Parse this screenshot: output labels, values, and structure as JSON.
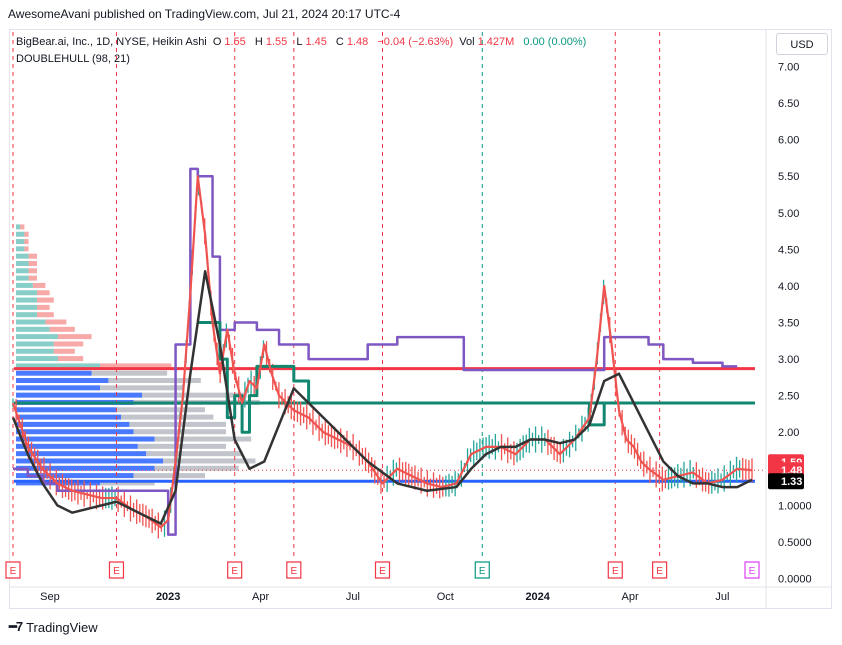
{
  "publisher_text": "AwesomeAvani published on TradingView.com, Jul 21, 2024 20:17 UTC-4",
  "legend": {
    "symbol": "BigBear.ai, Inc., 1D, NYSE, Heikin Ashi",
    "o_label": "O",
    "o_val": "1.55",
    "h_label": "H",
    "h_val": "1.55",
    "l_label": "L",
    "l_val": "1.45",
    "c_label": "C",
    "c_val": "1.48",
    "change": "−0.04 (−2.63%)",
    "vol_label": "Vol",
    "vol_val": "1.427M",
    "vol2": "0.00 (0.00%)",
    "indicator": "DOUBLEHULL (98, 21)"
  },
  "currency": "USD",
  "footer": {
    "brand": "TradingView"
  },
  "colors": {
    "candle_up": "#26a69a",
    "candle_down": "#ef5350",
    "hull_red": "#f23645",
    "purple": "#7e57c2",
    "teal": "#12876f",
    "blue": "#2962ff",
    "dark": "#333333",
    "earnings": "#f23645",
    "dividend": "#089981"
  },
  "chart_data": {
    "type": "line",
    "title": "BigBear.ai, Inc., 1D, NYSE, Heikin Ashi",
    "ylim": [
      0,
      7.0
    ],
    "y_ticks": [
      "0.0000",
      "0.5000",
      "1.0000",
      "1.50",
      "2.00",
      "2.50",
      "3.00",
      "3.50",
      "4.00",
      "4.50",
      "5.00",
      "5.50",
      "6.00",
      "6.50",
      "7.00"
    ],
    "y_tick_values": [
      0,
      0.5,
      1.0,
      1.5,
      2.0,
      2.5,
      3.0,
      3.5,
      4.0,
      4.5,
      5.0,
      5.5,
      6.0,
      6.5,
      7.0
    ],
    "x_ticks": [
      {
        "label": "Sep",
        "t": 0.05,
        "bold": false
      },
      {
        "label": "2023",
        "t": 0.21,
        "bold": true
      },
      {
        "label": "Apr",
        "t": 0.335,
        "bold": false
      },
      {
        "label": "Jul",
        "t": 0.46,
        "bold": false
      },
      {
        "label": "Oct",
        "t": 0.585,
        "bold": false
      },
      {
        "label": "2024",
        "t": 0.71,
        "bold": true
      },
      {
        "label": "Apr",
        "t": 0.835,
        "bold": false
      },
      {
        "label": "Jul",
        "t": 0.96,
        "bold": false
      }
    ],
    "price_labels": [
      {
        "value": 1.59,
        "text": "1.59",
        "bg": "#f23645"
      },
      {
        "value": 1.48,
        "text": "1.48",
        "bg": "#f23645"
      },
      {
        "value": 1.33,
        "text": "1.33",
        "bg": "#000000"
      }
    ],
    "horizontal_levels": [
      {
        "value": 2.87,
        "color": "#f23645"
      },
      {
        "value": 2.4,
        "color": "#12876f"
      },
      {
        "value": 1.33,
        "color": "#2962ff"
      }
    ],
    "earnings_markers": [
      0.0,
      0.14,
      0.3,
      0.38,
      0.5,
      0.815,
      0.875
    ],
    "dividend_markers": [
      0.635
    ],
    "other_markers": [
      1.0
    ],
    "close_series": {
      "t": [
        0.0,
        0.02,
        0.04,
        0.06,
        0.08,
        0.1,
        0.12,
        0.14,
        0.16,
        0.18,
        0.2,
        0.21,
        0.22,
        0.23,
        0.24,
        0.25,
        0.26,
        0.27,
        0.28,
        0.29,
        0.3,
        0.31,
        0.32,
        0.33,
        0.34,
        0.35,
        0.36,
        0.37,
        0.38,
        0.4,
        0.42,
        0.44,
        0.46,
        0.48,
        0.5,
        0.52,
        0.54,
        0.56,
        0.58,
        0.6,
        0.62,
        0.64,
        0.66,
        0.68,
        0.7,
        0.72,
        0.74,
        0.76,
        0.78,
        0.79,
        0.8,
        0.81,
        0.82,
        0.83,
        0.84,
        0.85,
        0.86,
        0.88,
        0.9,
        0.92,
        0.94,
        0.96,
        0.98,
        1.0
      ],
      "v": [
        2.4,
        1.8,
        1.5,
        1.3,
        1.2,
        1.15,
        1.1,
        1.1,
        0.95,
        0.85,
        0.7,
        0.8,
        1.6,
        2.5,
        3.9,
        5.5,
        4.7,
        3.5,
        2.8,
        3.4,
        2.8,
        2.4,
        2.7,
        2.6,
        3.2,
        2.8,
        2.5,
        2.4,
        2.3,
        2.2,
        2.0,
        1.9,
        1.8,
        1.6,
        1.3,
        1.5,
        1.4,
        1.3,
        1.25,
        1.3,
        1.7,
        1.8,
        1.8,
        1.7,
        1.9,
        1.9,
        1.7,
        1.9,
        2.2,
        3.0,
        4.0,
        3.2,
        2.3,
        1.9,
        1.8,
        1.6,
        1.5,
        1.35,
        1.4,
        1.45,
        1.3,
        1.35,
        1.5,
        1.48
      ]
    },
    "hull_series": {
      "t": [
        0.0,
        0.02,
        0.04,
        0.06,
        0.08,
        0.1,
        0.12,
        0.14,
        0.16,
        0.18,
        0.2,
        0.22,
        0.24,
        0.26,
        0.28,
        0.3,
        0.32,
        0.34,
        0.36,
        0.38,
        0.4,
        0.44,
        0.48,
        0.52,
        0.56,
        0.6,
        0.62,
        0.64,
        0.66,
        0.68,
        0.7,
        0.72,
        0.74,
        0.76,
        0.78,
        0.8,
        0.82,
        0.84,
        0.86,
        0.88,
        0.9,
        0.92,
        0.94,
        0.96,
        0.98,
        1.0
      ],
      "v": [
        2.2,
        1.7,
        1.3,
        1.0,
        0.9,
        0.95,
        1.0,
        1.05,
        0.95,
        0.85,
        0.75,
        1.2,
        2.8,
        4.2,
        3.2,
        1.9,
        1.5,
        1.6,
        2.1,
        2.6,
        2.4,
        2.0,
        1.6,
        1.3,
        1.2,
        1.25,
        1.5,
        1.7,
        1.8,
        1.8,
        1.9,
        1.9,
        1.85,
        1.9,
        2.1,
        2.7,
        2.8,
        2.4,
        2.0,
        1.6,
        1.4,
        1.3,
        1.3,
        1.25,
        1.25,
        1.35
      ]
    },
    "purple_series": {
      "t": [
        0.0,
        0.02,
        0.04,
        0.06,
        0.08,
        0.1,
        0.12,
        0.14,
        0.16,
        0.18,
        0.2,
        0.21,
        0.22,
        0.24,
        0.25,
        0.27,
        0.28,
        0.3,
        0.33,
        0.36,
        0.4,
        0.44,
        0.48,
        0.52,
        0.56,
        0.6,
        0.61,
        0.64,
        0.68,
        0.72,
        0.76,
        0.79,
        0.8,
        0.82,
        0.84,
        0.86,
        0.88,
        0.9,
        0.92,
        0.94,
        0.96,
        0.98
      ],
      "v": [
        1.5,
        1.4,
        1.3,
        1.2,
        1.2,
        1.2,
        1.2,
        1.2,
        1.2,
        1.2,
        1.2,
        0.6,
        3.2,
        5.6,
        5.5,
        4.4,
        3.4,
        3.5,
        3.4,
        3.2,
        3.0,
        3.0,
        3.2,
        3.3,
        3.3,
        3.3,
        2.85,
        2.85,
        2.85,
        2.85,
        2.85,
        2.85,
        3.3,
        3.3,
        3.3,
        3.2,
        3.0,
        3.0,
        2.95,
        2.95,
        2.9,
        2.9
      ]
    },
    "green_series": {
      "t": [
        0.25,
        0.26,
        0.28,
        0.29,
        0.3,
        0.31,
        0.32,
        0.33,
        0.34,
        0.36,
        0.38,
        0.4,
        0.44,
        0.48,
        0.52,
        0.56,
        0.6,
        0.64,
        0.7,
        0.76,
        0.78,
        0.79,
        0.8,
        0.81,
        0.82
      ],
      "v": [
        3.5,
        3.5,
        3.0,
        2.2,
        2.5,
        2.0,
        2.5,
        2.9,
        2.9,
        2.9,
        2.7,
        2.4,
        2.4,
        2.4,
        2.4,
        2.4,
        2.4,
        2.4,
        2.4,
        2.4,
        2.1,
        2.1,
        2.4,
        2.4,
        2.4
      ]
    },
    "volume_profile": {
      "levels": [
        1.3,
        1.4,
        1.5,
        1.6,
        1.7,
        1.8,
        1.9,
        2.0,
        2.1,
        2.2,
        2.3,
        2.4,
        2.5,
        2.6,
        2.7,
        2.8,
        2.9,
        3.0,
        3.1,
        3.2,
        3.3,
        3.4,
        3.5,
        3.6,
        3.7,
        3.8,
        3.9,
        4.0,
        4.1,
        4.2,
        4.3,
        4.4,
        4.5,
        4.6,
        4.7,
        4.8
      ],
      "blue": [
        0.2,
        0.28,
        0.33,
        0.35,
        0.31,
        0.29,
        0.33,
        0.28,
        0.27,
        0.25,
        0.24,
        0.28,
        0.3,
        0.2,
        0.22,
        0.18,
        0.2,
        0.1,
        0.09,
        0.09,
        0.1,
        0.08,
        0.07,
        0.05,
        0.05,
        0.05,
        0.05,
        0.04,
        0.03,
        0.03,
        0.03,
        0.03,
        0.02,
        0.02,
        0.02,
        0.01
      ],
      "gray": [
        0.13,
        0.17,
        0.2,
        0.22,
        0.23,
        0.21,
        0.23,
        0.22,
        0.23,
        0.22,
        0.21,
        0.3,
        0.25,
        0.2,
        0.22,
        0.18,
        0.17,
        0.06,
        0.05,
        0.07,
        0.08,
        0.06,
        0.05,
        0.04,
        0.03,
        0.04,
        0.03,
        0.03,
        0.02,
        0.02,
        0.02,
        0.02,
        0.01,
        0.01,
        0.01,
        0.01
      ]
    }
  }
}
